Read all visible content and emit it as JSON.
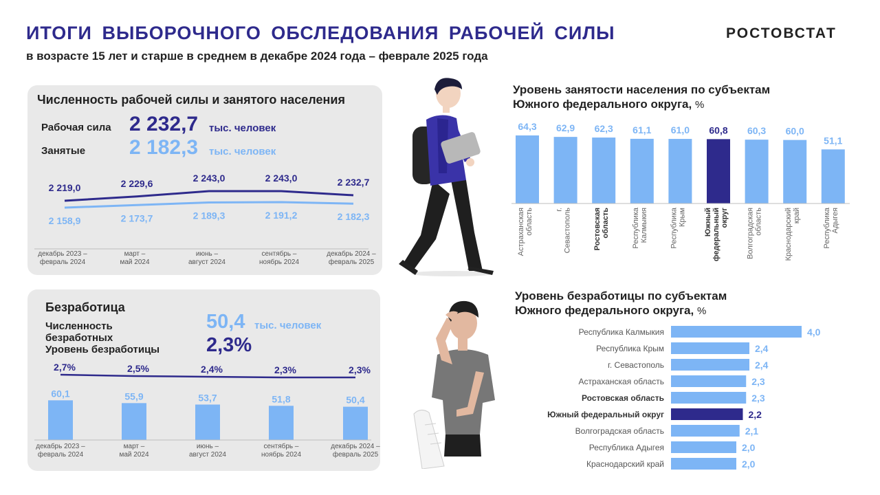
{
  "header": {
    "title": "ИТОГИ ВЫБОРОЧНОГО ОБСЛЕДОВАНИЯ РАБОЧЕЙ СИЛЫ",
    "subtitle": "в возрасте 15 лет и старше в среднем в декабре 2024 года – феврале 2025 года",
    "brand": "РОСТОВСТАТ"
  },
  "colors": {
    "dark": "#2e2a8c",
    "light": "#7db5f5",
    "panel": "#e9e9e9"
  },
  "workforce": {
    "title": "Численность рабочей силы и занятого населения",
    "labor_label": "Рабочая сила",
    "labor_value": "2 232,7",
    "employed_label": "Занятые",
    "employed_value": "2 182,3",
    "unit": "тыс. человек"
  },
  "unemployment": {
    "title": "Безработица",
    "count_label_1": "Численность",
    "count_label_2": "безработных",
    "count_value": "50,4",
    "count_unit": "тыс. человек",
    "rate_label": "Уровень безработицы",
    "rate_value": "2,3%"
  },
  "employment_title": "Уровень занятости населения по субъектам Южного федерального округа,",
  "unemployment_title": "Уровень  безработицы по субъектам Южного федерального округа,",
  "pct_sign": "%",
  "chart_data": [
    {
      "type": "line",
      "categories": [
        "декабрь 2023 – февраль 2024",
        "март – май 2024",
        "июнь – август 2024",
        "сентябрь – ноябрь 2024",
        "декабрь 2024 – февраль 2025"
      ],
      "series": [
        {
          "name": "Рабочая сила",
          "values": [
            2219.0,
            2229.6,
            2243.0,
            2243.0,
            2232.7
          ],
          "labels": [
            "2 219,0",
            "2 229,6",
            "2 243,0",
            "2 243,0",
            "2 232,7"
          ],
          "color": "#2e2a8c"
        },
        {
          "name": "Занятые",
          "values": [
            2158.9,
            2173.7,
            2189.3,
            2191.2,
            2182.3
          ],
          "labels": [
            "2 158,9",
            "2 173,7",
            "2 189,3",
            "2 191,2",
            "2 182,3"
          ],
          "color": "#7db5f5"
        }
      ]
    },
    {
      "type": "bar",
      "categories": [
        "декабрь 2023 – февраль 2024",
        "март – май 2024",
        "июнь – август 2024",
        "сентябрь – ноябрь 2024",
        "декабрь 2024 – февраль 2025"
      ],
      "series": [
        {
          "name": "Численность безработных",
          "values": [
            60.1,
            55.9,
            53.7,
            51.8,
            50.4
          ],
          "labels": [
            "60,1",
            "55,9",
            "53,7",
            "51,8",
            "50,4"
          ],
          "color": "#7db5f5"
        }
      ],
      "line": {
        "name": "Уровень безработицы",
        "values": [
          2.7,
          2.5,
          2.4,
          2.3,
          2.3
        ],
        "labels": [
          "2,7%",
          "2,5%",
          "2,4%",
          "2,3%",
          "2,3%"
        ],
        "color": "#2e2a8c"
      }
    },
    {
      "type": "bar",
      "title": "Уровень занятости населения по субъектам Южного федерального округа, %",
      "categories": [
        "Астраханская область",
        "г. Севастополь",
        "Ростовская область",
        "Республика Калмыкия",
        "Республика Крым",
        "Южный федеральный округ",
        "Волгоградская область",
        "Краснодарский край",
        "Республика Адыгея"
      ],
      "values": [
        64.3,
        62.9,
        62.3,
        61.1,
        61.0,
        60.8,
        60.3,
        60.0,
        51.1
      ],
      "labels": [
        "64,3",
        "62,9",
        "62,3",
        "61,1",
        "61,0",
        "60,8",
        "60,3",
        "60,0",
        "51,1"
      ],
      "highlight": "Южный федеральный округ",
      "bold": [
        "Ростовская область",
        "Южный федеральный округ"
      ]
    },
    {
      "type": "bar",
      "orientation": "horizontal",
      "title": "Уровень  безработицы по субъектам Южного федерального округа, %",
      "categories": [
        "Республика Калмыкия",
        "Республика  Крым",
        "г. Севастополь",
        "Астраханская область",
        "Ростовская область",
        "Южный федеральный округ",
        "Волгоградская область",
        "Республика Адыгея",
        "Краснодарский край"
      ],
      "values": [
        4.0,
        2.4,
        2.4,
        2.3,
        2.3,
        2.2,
        2.1,
        2.0,
        2.0
      ],
      "labels": [
        "4,0",
        "2,4",
        "2,4",
        "2,3",
        "2,3",
        "2,2",
        "2,1",
        "2,0",
        "2,0"
      ],
      "highlight": "Южный федеральный округ",
      "bold": [
        "Ростовская область",
        "Южный федеральный округ"
      ]
    }
  ]
}
